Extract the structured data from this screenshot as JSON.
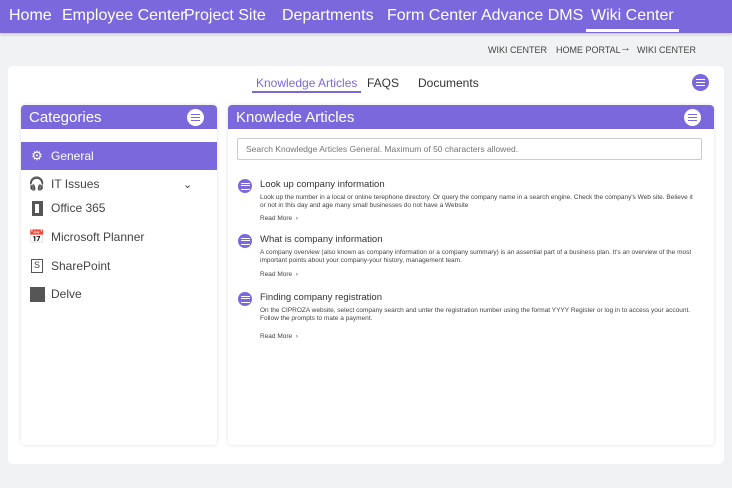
{
  "nav": {
    "items": [
      "Home",
      "Employee Center",
      "Project Site",
      "Departments",
      "Form Center",
      "Advance DMS",
      "Wiki Center"
    ],
    "active": "Wiki Center"
  },
  "breadcrumb": {
    "current": "WIKI CENTER",
    "home": "HOME PORTAL",
    "arrow": "→",
    "target": "WIKI CENTER"
  },
  "tabs": [
    {
      "label": "Knowledge Articles",
      "active": true
    },
    {
      "label": "FAQS"
    },
    {
      "label": "Documents"
    }
  ],
  "categories": {
    "title": "Categories",
    "items": [
      {
        "label": "General",
        "icon": "gear-icon",
        "selected": true
      },
      {
        "label": "IT Issues",
        "icon": "headset-icon",
        "expandable": true
      },
      {
        "label": "Office 365",
        "icon": "office-icon"
      },
      {
        "label": "Microsoft Planner",
        "icon": "calendar-icon"
      },
      {
        "label": "SharePoint",
        "icon": "sharepoint-icon"
      },
      {
        "label": "Delve",
        "icon": "delve-icon"
      }
    ]
  },
  "articles": {
    "title": "Knowlede Articles",
    "search_placeholder": "Search Knowledge Articles General. Maximum of 50 characters allowed.",
    "items": [
      {
        "title": "Look up company information",
        "body": "Look up the number in a local or online terephone directory. Or query the company name in a search engine. Check the company's Web site. Believe it or not in this day and age many small businesses do not have a Website",
        "more": "Read More"
      },
      {
        "title": "What is company information",
        "body": "A company overview (also known as company information or a company summary) is an assential part of a business plan. It's an overview of the most important points about your company-your history, management team.",
        "more": "Read More"
      },
      {
        "title": "Finding company registration",
        "body": "On the CIPROZA website, select company search and unter the registration number using the format YYYY Register or log in to access your account. Follow the prompts to mate a payment.",
        "more": "Read More"
      }
    ]
  },
  "colors": {
    "accent": "#7b68dd"
  }
}
